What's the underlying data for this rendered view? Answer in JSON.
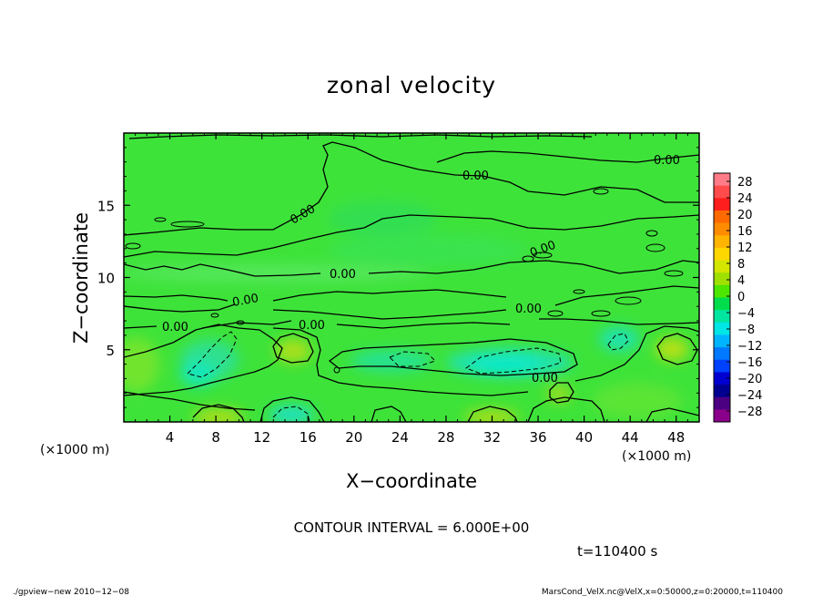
{
  "chart_data": {
    "type": "heatmap",
    "title": "zonal velocity",
    "xlabel": "X−coordinate",
    "ylabel": "Z−coordinate",
    "x_unit": "(×1000 m)",
    "y_unit": "(×1000 m)",
    "x_ticks": [
      "4",
      "8",
      "12",
      "16",
      "20",
      "24",
      "28",
      "32",
      "36",
      "40",
      "44",
      "48"
    ],
    "x_tick_values": [
      4,
      8,
      12,
      16,
      20,
      24,
      28,
      32,
      36,
      40,
      44,
      48
    ],
    "y_ticks": [
      "5",
      "10",
      "15"
    ],
    "y_tick_values": [
      5,
      10,
      15
    ],
    "xlim": [
      0,
      50
    ],
    "ylim": [
      0,
      20
    ],
    "colorbar_ticks": [
      "28",
      "24",
      "20",
      "16",
      "12",
      "8",
      "4",
      "0",
      "−4",
      "−8",
      "−12",
      "−16",
      "−20",
      "−24",
      "−28"
    ],
    "colorbar_colors": [
      "#ff7b87",
      "#ff4b4b",
      "#ff1e1e",
      "#ff6a00",
      "#ff8c00",
      "#ffb400",
      "#ffd700",
      "#d4e600",
      "#a0e000",
      "#4ce600",
      "#00dd4c",
      "#00e6a0",
      "#00e6e6",
      "#00b4ff",
      "#0078ff",
      "#0040ff",
      "#0000d0",
      "#000090",
      "#4b0082",
      "#8a008a"
    ],
    "contour_labels": [
      "0.00",
      "0.00",
      "0.00",
      "0.00",
      "0.00",
      "0.00",
      "0.00",
      "0.00",
      "0.00",
      "0.00",
      "0.00"
    ],
    "contour_interval_text": "CONTOUR INTERVAL = 6.000E+00",
    "time_text": "t=110400 s",
    "footer_left": "./gpview−new  2010−12−08",
    "footer_right": "MarsCond_VelX.nc@VelX,x=0:50000,z=0:20000,t=110400",
    "grid": false
  }
}
